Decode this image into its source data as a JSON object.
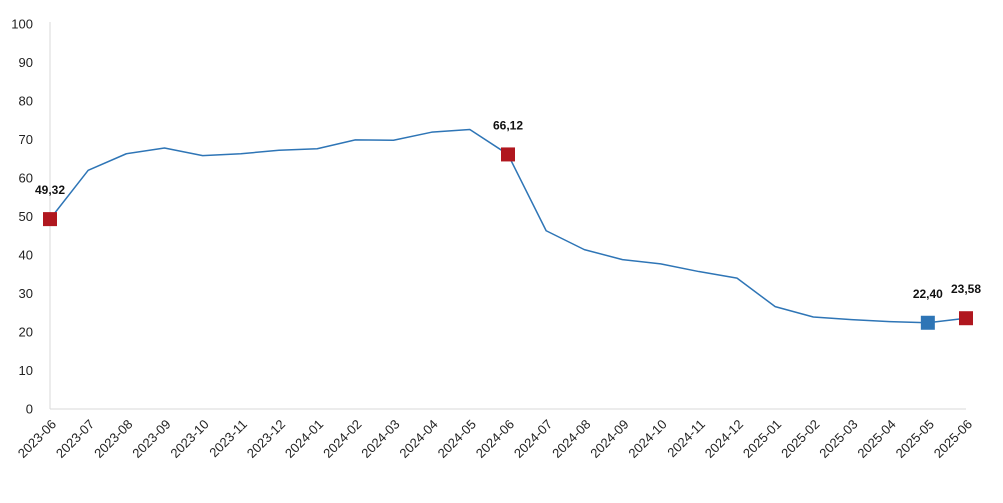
{
  "chart_data": {
    "type": "line",
    "x": [
      "2023-06",
      "2023-07",
      "2023-08",
      "2023-09",
      "2023-10",
      "2023-11",
      "2023-12",
      "2024-01",
      "2024-02",
      "2024-03",
      "2024-04",
      "2024-05",
      "2024-06",
      "2024-07",
      "2024-08",
      "2024-09",
      "2024-10",
      "2024-11",
      "2024-12",
      "2025-01",
      "2025-02",
      "2025-03",
      "2025-04",
      "2025-05",
      "2025-06"
    ],
    "series": [
      {
        "values": [
          49.32,
          62.0,
          66.3,
          67.8,
          65.8,
          66.3,
          67.2,
          67.6,
          69.9,
          69.8,
          71.9,
          72.6,
          66.12,
          46.3,
          41.4,
          38.8,
          37.7,
          35.7,
          34.0,
          26.6,
          23.9,
          23.2,
          22.7,
          22.4,
          23.58
        ],
        "color": "#2E75B6"
      }
    ],
    "markers": [
      {
        "index": 0,
        "label": "49,32",
        "color": "#B0171F"
      },
      {
        "index": 12,
        "label": "66,12",
        "color": "#B0171F"
      },
      {
        "index": 23,
        "label": "22,40",
        "color": "#2E75B6"
      },
      {
        "index": 24,
        "label": "23,58",
        "color": "#B0171F"
      }
    ],
    "ylim": [
      0,
      100
    ],
    "yticks": [
      "0",
      "10",
      "20",
      "30",
      "40",
      "50",
      "60",
      "70",
      "80",
      "90",
      "100"
    ],
    "grid": false,
    "title": "",
    "xlabel": "",
    "ylabel": ""
  }
}
